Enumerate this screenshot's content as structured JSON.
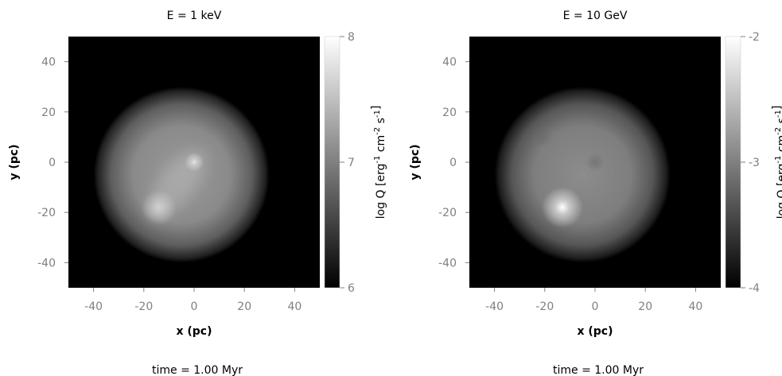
{
  "chart_data": [
    {
      "type": "heatmap",
      "title": "E = 1 keV",
      "xlabel": "x (pc)",
      "ylabel": "y (pc)",
      "xlim": [
        -50,
        50
      ],
      "ylim": [
        -50,
        50
      ],
      "xticks": [
        -40,
        -20,
        0,
        20,
        40
      ],
      "yticks": [
        -40,
        -20,
        0,
        20,
        40
      ],
      "colorbar": {
        "label_main": "log Q [erg",
        "label_unit": " cm",
        "label_tail": " s",
        "sup1": "-1",
        "sup2": "-2",
        "sup3": "-1",
        "min": 6,
        "max": 8,
        "ticks": [
          6,
          7,
          8
        ],
        "colormap": "grayscale"
      },
      "footer": "time = 1.00 Myr",
      "features": [
        {
          "x": -5,
          "y": -5,
          "radius": 35,
          "kind": "diffuse-disk"
        },
        {
          "x": 0,
          "y": 0,
          "kind": "bright-peak"
        },
        {
          "x": -14,
          "y": -18,
          "kind": "bright-band-end"
        }
      ]
    },
    {
      "type": "heatmap",
      "title": "E = 10 GeV",
      "xlabel": "x (pc)",
      "ylabel": "y (pc)",
      "xlim": [
        -50,
        50
      ],
      "ylim": [
        -50,
        50
      ],
      "xticks": [
        -40,
        -20,
        0,
        20,
        40
      ],
      "yticks": [
        -40,
        -20,
        0,
        20,
        40
      ],
      "colorbar": {
        "label_main": "log Q [erg",
        "label_unit": " cm",
        "label_tail": " s",
        "sup1": "-1",
        "sup2": "-2",
        "sup3": "-1",
        "min": -4,
        "max": -2,
        "ticks": [
          -4,
          -3,
          -2
        ],
        "colormap": "grayscale"
      },
      "footer": "time = 1.00 Myr",
      "features": [
        {
          "x": -5,
          "y": -5,
          "radius": 35,
          "kind": "diffuse-disk"
        },
        {
          "x": -13,
          "y": -18,
          "kind": "bright-peak"
        },
        {
          "x": 0,
          "y": 0,
          "kind": "faint-spot"
        }
      ]
    }
  ]
}
